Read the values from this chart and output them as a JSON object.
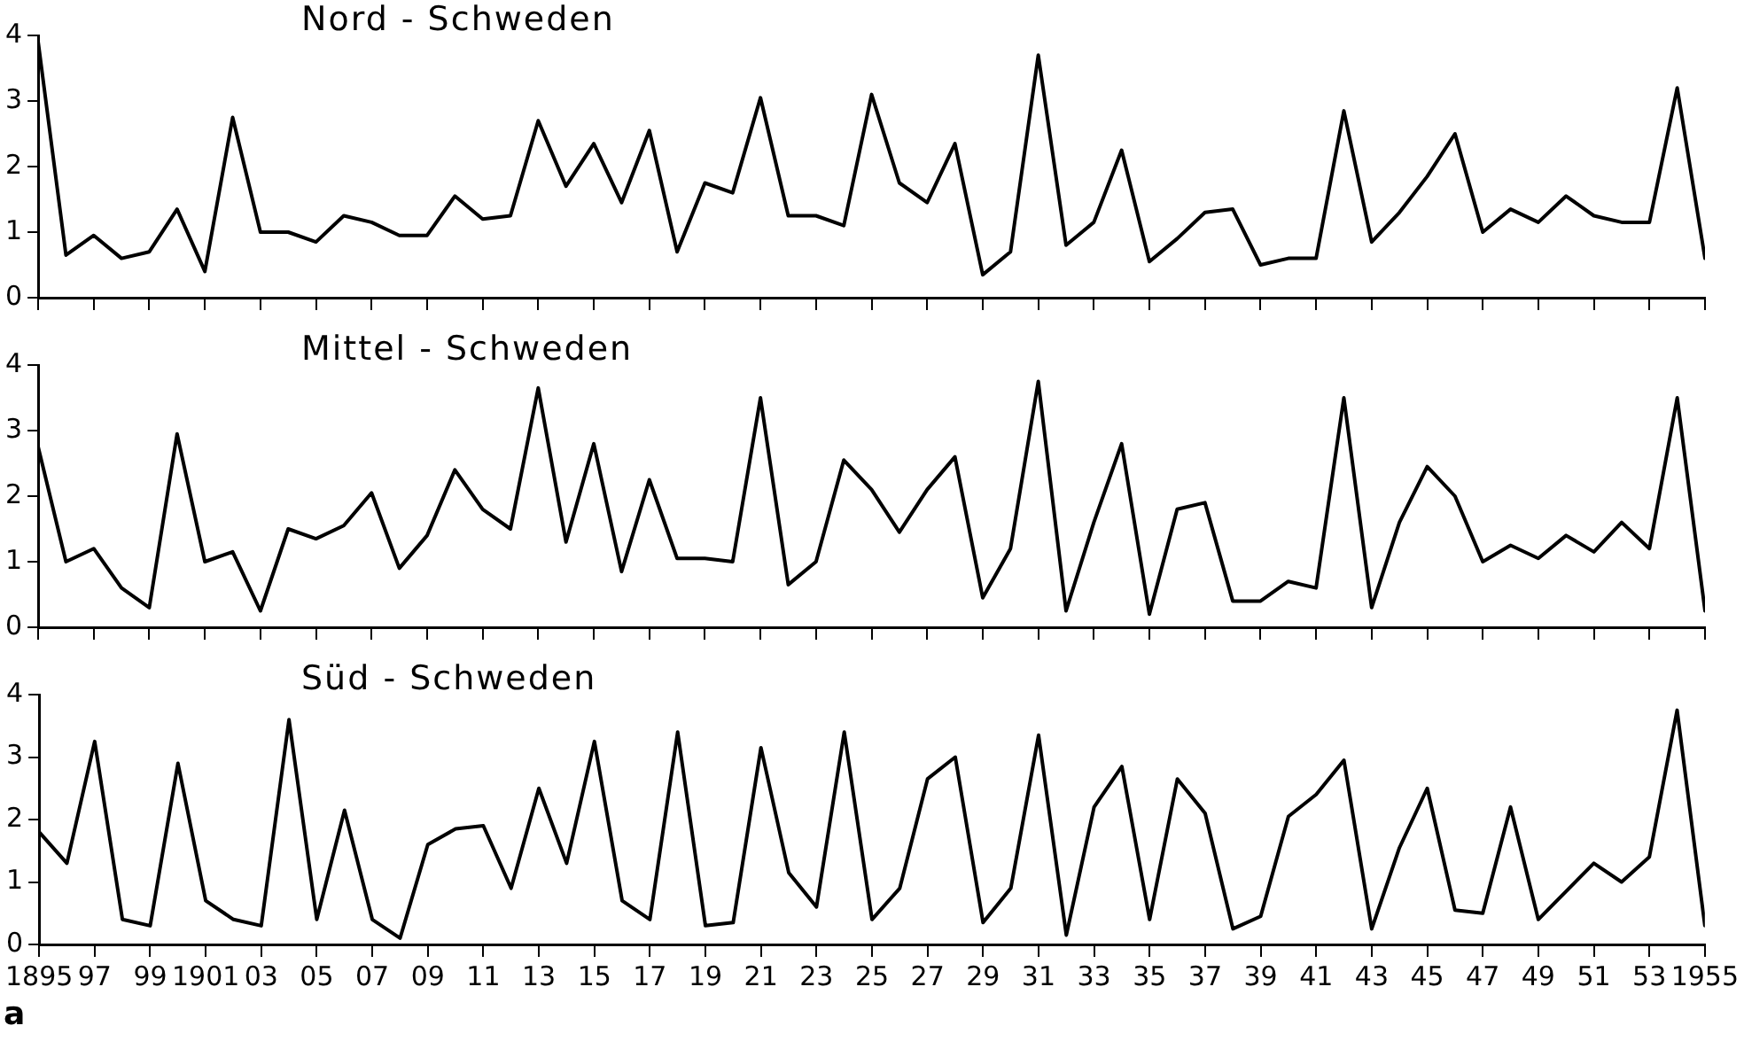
{
  "chart_data": [
    {
      "type": "line",
      "title": "Nord - Schweden",
      "xlim": [
        1895,
        1955
      ],
      "xticks": [
        {
          "value": 1895,
          "label": null
        },
        {
          "value": 1897,
          "label": null
        },
        {
          "value": 1899,
          "label": null
        },
        {
          "value": 1901,
          "label": null
        },
        {
          "value": 1903,
          "label": null
        },
        {
          "value": 1905,
          "label": null
        },
        {
          "value": 1907,
          "label": null
        },
        {
          "value": 1909,
          "label": null
        },
        {
          "value": 1911,
          "label": null
        },
        {
          "value": 1913,
          "label": null
        },
        {
          "value": 1915,
          "label": null
        },
        {
          "value": 1917,
          "label": null
        },
        {
          "value": 1919,
          "label": null
        },
        {
          "value": 1921,
          "label": null
        },
        {
          "value": 1923,
          "label": null
        },
        {
          "value": 1925,
          "label": null
        },
        {
          "value": 1927,
          "label": null
        },
        {
          "value": 1929,
          "label": null
        },
        {
          "value": 1931,
          "label": null
        },
        {
          "value": 1933,
          "label": null
        },
        {
          "value": 1935,
          "label": null
        },
        {
          "value": 1937,
          "label": null
        },
        {
          "value": 1939,
          "label": null
        },
        {
          "value": 1941,
          "label": null
        },
        {
          "value": 1943,
          "label": null
        },
        {
          "value": 1945,
          "label": null
        },
        {
          "value": 1947,
          "label": null
        },
        {
          "value": 1949,
          "label": null
        },
        {
          "value": 1951,
          "label": null
        },
        {
          "value": 1953,
          "label": null
        },
        {
          "value": 1955,
          "label": null
        }
      ],
      "ylim": [
        0,
        4
      ],
      "yticks": [
        0,
        1,
        2,
        3,
        4
      ],
      "tick_labels": "y",
      "grid": false,
      "legend": false,
      "marker": "none",
      "line_style": "solid",
      "x": [
        1895,
        1896,
        1897,
        1898,
        1899,
        1900,
        1901,
        1902,
        1903,
        1904,
        1905,
        1906,
        1907,
        1908,
        1909,
        1910,
        1911,
        1912,
        1913,
        1914,
        1915,
        1916,
        1917,
        1918,
        1919,
        1920,
        1921,
        1922,
        1923,
        1924,
        1925,
        1926,
        1927,
        1928,
        1929,
        1930,
        1931,
        1932,
        1933,
        1934,
        1935,
        1936,
        1937,
        1938,
        1939,
        1940,
        1941,
        1942,
        1943,
        1944,
        1945,
        1946,
        1947,
        1948,
        1949,
        1950,
        1951,
        1952,
        1953,
        1954,
        1955
      ],
      "series": [
        {
          "color": "#000000",
          "values": [
            3.9,
            0.65,
            0.95,
            0.6,
            0.7,
            1.35,
            0.4,
            2.75,
            1.0,
            1.0,
            0.85,
            1.25,
            1.15,
            0.95,
            0.95,
            1.55,
            1.2,
            1.25,
            2.7,
            1.7,
            2.35,
            1.45,
            2.55,
            0.7,
            1.75,
            1.6,
            3.05,
            1.25,
            1.25,
            1.1,
            3.1,
            1.75,
            1.45,
            2.35,
            0.35,
            0.7,
            3.7,
            0.8,
            1.15,
            2.25,
            0.55,
            0.9,
            1.3,
            1.35,
            0.5,
            0.6,
            0.6,
            2.85,
            0.85,
            1.3,
            1.85,
            2.5,
            1.0,
            1.35,
            1.15,
            1.55,
            1.25,
            1.15,
            1.15,
            3.2,
            0.6
          ]
        }
      ]
    },
    {
      "type": "line",
      "title": "Mittel - Schweden",
      "xlim": [
        1895,
        1955
      ],
      "xticks": [
        {
          "value": 1895,
          "label": null
        },
        {
          "value": 1897,
          "label": null
        },
        {
          "value": 1899,
          "label": null
        },
        {
          "value": 1901,
          "label": null
        },
        {
          "value": 1903,
          "label": null
        },
        {
          "value": 1905,
          "label": null
        },
        {
          "value": 1907,
          "label": null
        },
        {
          "value": 1909,
          "label": null
        },
        {
          "value": 1911,
          "label": null
        },
        {
          "value": 1913,
          "label": null
        },
        {
          "value": 1915,
          "label": null
        },
        {
          "value": 1917,
          "label": null
        },
        {
          "value": 1919,
          "label": null
        },
        {
          "value": 1921,
          "label": null
        },
        {
          "value": 1923,
          "label": null
        },
        {
          "value": 1925,
          "label": null
        },
        {
          "value": 1927,
          "label": null
        },
        {
          "value": 1929,
          "label": null
        },
        {
          "value": 1931,
          "label": null
        },
        {
          "value": 1933,
          "label": null
        },
        {
          "value": 1935,
          "label": null
        },
        {
          "value": 1937,
          "label": null
        },
        {
          "value": 1939,
          "label": null
        },
        {
          "value": 1941,
          "label": null
        },
        {
          "value": 1943,
          "label": null
        },
        {
          "value": 1945,
          "label": null
        },
        {
          "value": 1947,
          "label": null
        },
        {
          "value": 1949,
          "label": null
        },
        {
          "value": 1951,
          "label": null
        },
        {
          "value": 1953,
          "label": null
        },
        {
          "value": 1955,
          "label": null
        }
      ],
      "ylim": [
        0,
        4
      ],
      "yticks": [
        0,
        1,
        2,
        3,
        4
      ],
      "tick_labels": "y",
      "grid": false,
      "legend": false,
      "marker": "none",
      "line_style": "solid",
      "x": [
        1895,
        1896,
        1897,
        1898,
        1899,
        1900,
        1901,
        1902,
        1903,
        1904,
        1905,
        1906,
        1907,
        1908,
        1909,
        1910,
        1911,
        1912,
        1913,
        1914,
        1915,
        1916,
        1917,
        1918,
        1919,
        1920,
        1921,
        1922,
        1923,
        1924,
        1925,
        1926,
        1927,
        1928,
        1929,
        1930,
        1931,
        1932,
        1933,
        1934,
        1935,
        1936,
        1937,
        1938,
        1939,
        1940,
        1941,
        1942,
        1943,
        1944,
        1945,
        1946,
        1947,
        1948,
        1949,
        1950,
        1951,
        1952,
        1953,
        1954,
        1955
      ],
      "series": [
        {
          "color": "#000000",
          "values": [
            2.75,
            1.0,
            1.2,
            0.6,
            0.3,
            2.95,
            1.0,
            1.15,
            0.25,
            1.5,
            1.35,
            1.55,
            2.05,
            0.9,
            1.4,
            2.4,
            1.8,
            1.5,
            3.65,
            1.3,
            2.8,
            0.85,
            2.25,
            1.05,
            1.05,
            1.0,
            3.5,
            0.65,
            1.0,
            2.55,
            2.1,
            1.45,
            2.1,
            2.6,
            0.45,
            1.2,
            3.75,
            0.25,
            1.6,
            2.8,
            0.2,
            1.8,
            1.9,
            0.4,
            0.4,
            0.7,
            0.6,
            3.5,
            0.3,
            1.6,
            2.45,
            2.0,
            1.0,
            1.25,
            1.05,
            1.4,
            1.15,
            1.6,
            1.2,
            3.5,
            0.25
          ]
        }
      ]
    },
    {
      "type": "line",
      "title": "Süd - Schweden",
      "annotations": [
        "a"
      ],
      "xlim": [
        1895,
        1955
      ],
      "xticks": [
        1895,
        {
          "value": 1897,
          "label": "97"
        },
        {
          "value": 1899,
          "label": "99"
        },
        {
          "value": 1901,
          "label": "1901"
        },
        {
          "value": 1903,
          "label": "03"
        },
        {
          "value": 1905,
          "label": "05"
        },
        {
          "value": 1907,
          "label": "07"
        },
        {
          "value": 1909,
          "label": "09"
        },
        {
          "value": 1911,
          "label": "11"
        },
        {
          "value": 1913,
          "label": "13"
        },
        {
          "value": 1915,
          "label": "15"
        },
        {
          "value": 1917,
          "label": "17"
        },
        {
          "value": 1919,
          "label": "19"
        },
        {
          "value": 1921,
          "label": "21"
        },
        {
          "value": 1923,
          "label": "23"
        },
        {
          "value": 1925,
          "label": "25"
        },
        {
          "value": 1927,
          "label": "27"
        },
        {
          "value": 1929,
          "label": "29"
        },
        {
          "value": 1931,
          "label": "31"
        },
        {
          "value": 1933,
          "label": "33"
        },
        {
          "value": 1935,
          "label": "35"
        },
        {
          "value": 1937,
          "label": "37"
        },
        {
          "value": 1939,
          "label": "39"
        },
        {
          "value": 1941,
          "label": "41"
        },
        {
          "value": 1943,
          "label": "43"
        },
        {
          "value": 1945,
          "label": "45"
        },
        {
          "value": 1947,
          "label": "47"
        },
        {
          "value": 1949,
          "label": "49"
        },
        {
          "value": 1951,
          "label": "51"
        },
        {
          "value": 1953,
          "label": "53"
        },
        1955
      ],
      "ylim": [
        0,
        4
      ],
      "yticks": [
        0,
        1,
        2,
        3,
        4
      ],
      "grid": false,
      "legend": false,
      "marker": "none",
      "line_style": "solid",
      "x": [
        1895,
        1896,
        1897,
        1898,
        1899,
        1900,
        1901,
        1902,
        1903,
        1904,
        1905,
        1906,
        1907,
        1908,
        1909,
        1910,
        1911,
        1912,
        1913,
        1914,
        1915,
        1916,
        1917,
        1918,
        1919,
        1920,
        1921,
        1922,
        1923,
        1924,
        1925,
        1926,
        1927,
        1928,
        1929,
        1930,
        1931,
        1932,
        1933,
        1934,
        1935,
        1936,
        1937,
        1938,
        1939,
        1940,
        1941,
        1942,
        1943,
        1944,
        1945,
        1946,
        1947,
        1948,
        1949,
        1950,
        1951,
        1952,
        1953,
        1954,
        1955
      ],
      "series": [
        {
          "color": "#000000",
          "values": [
            1.8,
            1.3,
            3.25,
            0.4,
            0.3,
            2.9,
            0.7,
            0.4,
            0.3,
            3.6,
            0.4,
            2.15,
            0.4,
            0.1,
            1.6,
            1.85,
            1.9,
            0.9,
            2.5,
            1.3,
            3.25,
            0.7,
            0.4,
            3.4,
            0.3,
            0.35,
            3.15,
            1.15,
            0.6,
            3.4,
            0.4,
            0.9,
            2.65,
            3.0,
            0.35,
            0.9,
            3.35,
            0.15,
            2.2,
            2.85,
            0.4,
            2.65,
            2.1,
            0.25,
            0.45,
            2.05,
            2.4,
            2.95,
            0.25,
            1.55,
            2.5,
            0.55,
            0.5,
            2.2,
            0.4,
            0.85,
            1.3,
            1.0,
            1.4,
            3.75,
            0.3
          ]
        }
      ]
    }
  ]
}
